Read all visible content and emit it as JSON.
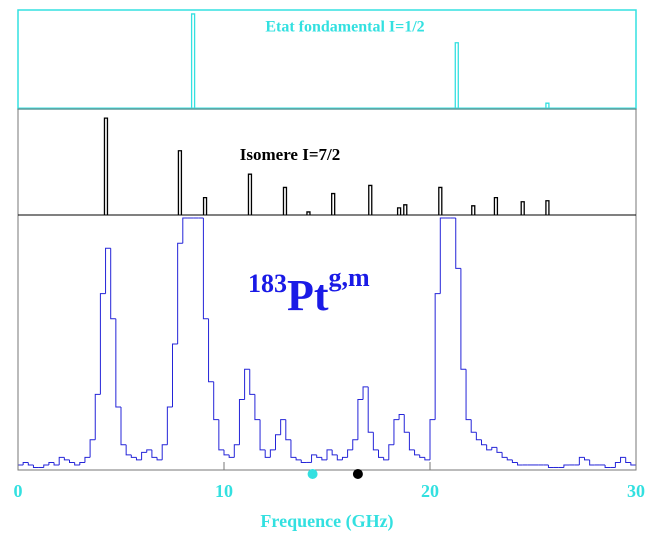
{
  "chart_data": [
    {
      "type": "stem",
      "title": "Etat fondamental I=1/2",
      "color": "#33e0e0",
      "x": [
        8.5,
        21.3,
        25.7
      ],
      "values": [
        98,
        68,
        5
      ],
      "xlim": [
        0,
        30
      ],
      "ylim": [
        0,
        100
      ]
    },
    {
      "type": "stem",
      "title": "Isomere I=7/2",
      "color": "#000000",
      "x": [
        4.27,
        7.86,
        9.08,
        11.26,
        12.96,
        14.1,
        15.3,
        17.1,
        18.5,
        18.8,
        20.5,
        22.1,
        23.2,
        24.5,
        25.7
      ],
      "values": [
        95,
        63,
        17,
        40,
        27,
        3,
        21,
        29,
        7,
        10,
        27,
        9,
        17,
        13,
        14
      ],
      "xlim": [
        0,
        30
      ],
      "ylim": [
        0,
        100
      ]
    },
    {
      "type": "histogram",
      "annotation": {
        "mass": "183",
        "element": "Pt",
        "states": "g,m"
      },
      "color": "#2424d8",
      "annotation_color": "#1a1ae6",
      "bins": [
        0,
        0.25,
        0.5,
        0.75,
        1,
        1.25,
        1.5,
        1.75,
        2,
        2.25,
        2.5,
        2.75,
        3,
        3.25,
        3.5,
        3.75,
        4,
        4.25,
        4.5,
        4.75,
        5,
        5.25,
        5.5,
        5.75,
        6,
        6.25,
        6.5,
        6.75,
        7,
        7.25,
        7.5,
        7.75,
        8,
        8.25,
        8.5,
        8.75,
        9,
        9.25,
        9.5,
        9.75,
        10,
        10.25,
        10.5,
        10.75,
        11,
        11.25,
        11.5,
        11.75,
        12,
        12.25,
        12.5,
        12.75,
        13,
        13.25,
        13.5,
        13.75,
        14,
        14.25,
        14.5,
        14.75,
        15,
        15.25,
        15.5,
        15.75,
        16,
        16.25,
        16.5,
        16.75,
        17,
        17.25,
        17.5,
        17.75,
        18,
        18.25,
        18.5,
        18.75,
        19,
        19.25,
        19.5,
        19.75,
        20,
        20.25,
        20.5,
        20.75,
        21,
        21.25,
        21.5,
        21.75,
        22,
        22.25,
        22.5,
        22.75,
        23,
        23.25,
        23.5,
        23.75,
        24,
        24.25,
        24.5,
        24.75,
        25,
        25.25,
        25.5,
        25.75,
        26,
        26.25,
        26.5,
        26.75,
        27,
        27.25,
        27.5,
        27.75,
        28,
        28.25,
        28.5,
        28.75,
        29,
        29.25,
        29.5,
        29.75,
        30
      ],
      "values": [
        2,
        3,
        2,
        1,
        1,
        2,
        3,
        2,
        5,
        4,
        3,
        2,
        3,
        5,
        12,
        30,
        70,
        88,
        60,
        25,
        10,
        6,
        5,
        4,
        7,
        8,
        5,
        4,
        10,
        25,
        50,
        90,
        100,
        100,
        100,
        100,
        60,
        35,
        20,
        8,
        6,
        5,
        10,
        28,
        40,
        30,
        20,
        8,
        5,
        8,
        14,
        20,
        12,
        5,
        4,
        3,
        3,
        6,
        5,
        4,
        8,
        6,
        4,
        5,
        8,
        12,
        28,
        33,
        15,
        8,
        5,
        4,
        10,
        20,
        22,
        15,
        8,
        6,
        5,
        4,
        20,
        70,
        100,
        100,
        100,
        80,
        40,
        20,
        15,
        12,
        10,
        8,
        9,
        7,
        5,
        4,
        3,
        2,
        2,
        2,
        2,
        2,
        2,
        1,
        1,
        1,
        2,
        2,
        2,
        5,
        4,
        2,
        2,
        2,
        1,
        1,
        3,
        5,
        3,
        2
      ],
      "markers": [
        {
          "x": 14.3,
          "color": "#33e0e0"
        },
        {
          "x": 16.5,
          "color": "#000000"
        }
      ],
      "xlim": [
        0,
        30
      ],
      "ylim": [
        0,
        100
      ],
      "xticks": [
        0,
        10,
        20,
        30
      ],
      "xlabel": "Frequence (GHz)",
      "axis_color": "#33e0e0"
    }
  ]
}
